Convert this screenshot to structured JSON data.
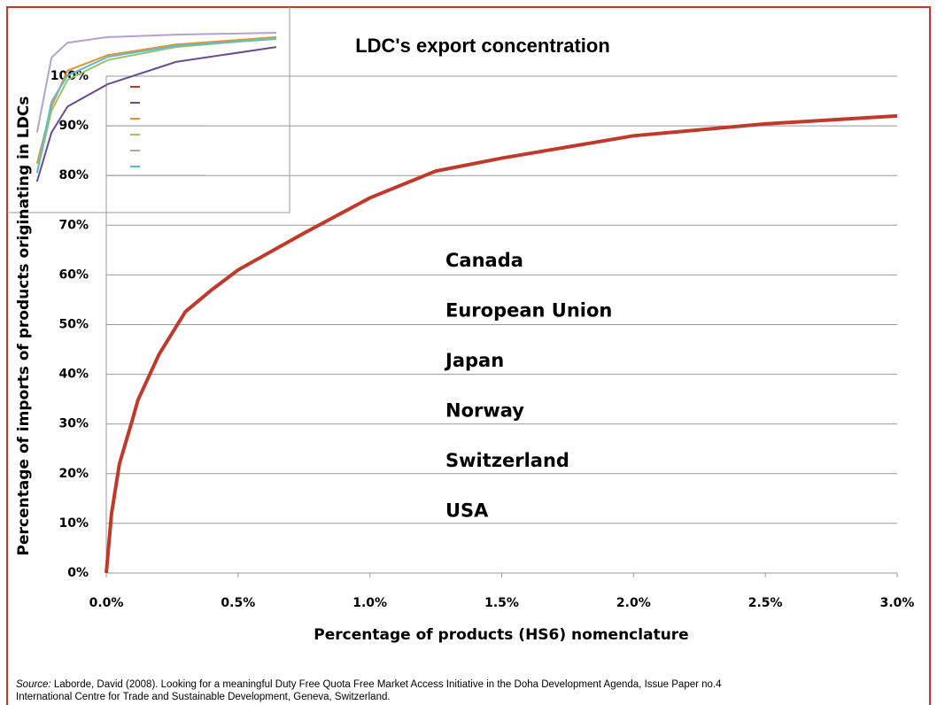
{
  "chart_data": [
    {
      "type": "line",
      "title": "LDC's export concentration",
      "x_label": "Percentage of products  (HS6)  nomenclature",
      "y_label": "Percentage of imports of products originating in LDCs",
      "x": [
        0,
        0.02,
        0.05,
        0.1,
        0.12,
        0.2,
        0.3,
        0.4,
        0.5,
        0.75,
        1.0,
        1.25,
        1.5,
        2.0,
        2.5,
        3.0
      ],
      "series": [
        {
          "name": "Canada",
          "color": "#c0392b",
          "values": [
            0,
            12,
            22,
            31,
            34.8,
            44,
            52.6,
            57,
            61,
            68.4,
            75.5,
            80.9,
            83.5,
            88,
            90.4,
            92
          ]
        }
      ],
      "xlim": [
        0,
        3
      ],
      "ylim": [
        0,
        100
      ],
      "xticks": [
        {
          "value": 0,
          "label": "0.0%"
        },
        {
          "value": 0.5,
          "label": "0.5%"
        },
        {
          "value": 1,
          "label": "1.0%"
        },
        {
          "value": 1.5,
          "label": "1.5%"
        },
        {
          "value": 2,
          "label": "2.0%"
        },
        {
          "value": 2.5,
          "label": "2.5%"
        },
        {
          "value": 3,
          "label": "3.0%"
        }
      ],
      "yticks": [
        {
          "value": 0,
          "label": "0%"
        },
        {
          "value": 10,
          "label": "10%"
        },
        {
          "value": 20,
          "label": "20%"
        },
        {
          "value": 30,
          "label": "30%"
        },
        {
          "value": 40,
          "label": "40%"
        },
        {
          "value": 50,
          "label": "50%"
        },
        {
          "value": 60,
          "label": "60%"
        },
        {
          "value": 70,
          "label": "70%"
        },
        {
          "value": 80,
          "label": "80%"
        },
        {
          "value": 90,
          "label": "90%"
        },
        {
          "value": 100,
          "label": "100%"
        }
      ],
      "grid": true
    },
    {
      "type": "line",
      "x": [
        0.02,
        0.2,
        0.4,
        0.9,
        1.75,
        3.0
      ],
      "series": [
        {
          "name": "European Union",
          "color": "#6a4c93",
          "values": [
            75,
            82.9,
            87.1,
            90.7,
            94.3,
            96.7
          ]
        },
        {
          "name": "Japan",
          "color": "#e8912d",
          "values": [
            77.9,
            87.1,
            92.9,
            95.4,
            97.1,
            98.3
          ]
        },
        {
          "name": "Norway",
          "color": "#9bc46a",
          "values": [
            76.4,
            86.4,
            91.4,
            94.6,
            96.7,
            98.1
          ]
        },
        {
          "name": "Switzerland",
          "color": "#b3a2cf",
          "values": [
            82.9,
            95,
            97.4,
            98.3,
            98.7,
            99
          ]
        },
        {
          "name": "USA",
          "color": "#5bbcd6",
          "values": [
            76.4,
            87.9,
            92.1,
            95.1,
            96.9,
            98
          ]
        }
      ],
      "xlim": [
        0,
        3
      ],
      "ylim": [
        70,
        100
      ]
    }
  ],
  "source": {
    "label": "Source:",
    "text": " Laborde, David (2008). Looking for a meaningful Duty Free Quota Free Market Access Initiative in the Doha Development Agenda, Issue Paper no.4",
    "text2": "International Centre for Trade and Sustainable Development, Geneva, Switzerland."
  }
}
